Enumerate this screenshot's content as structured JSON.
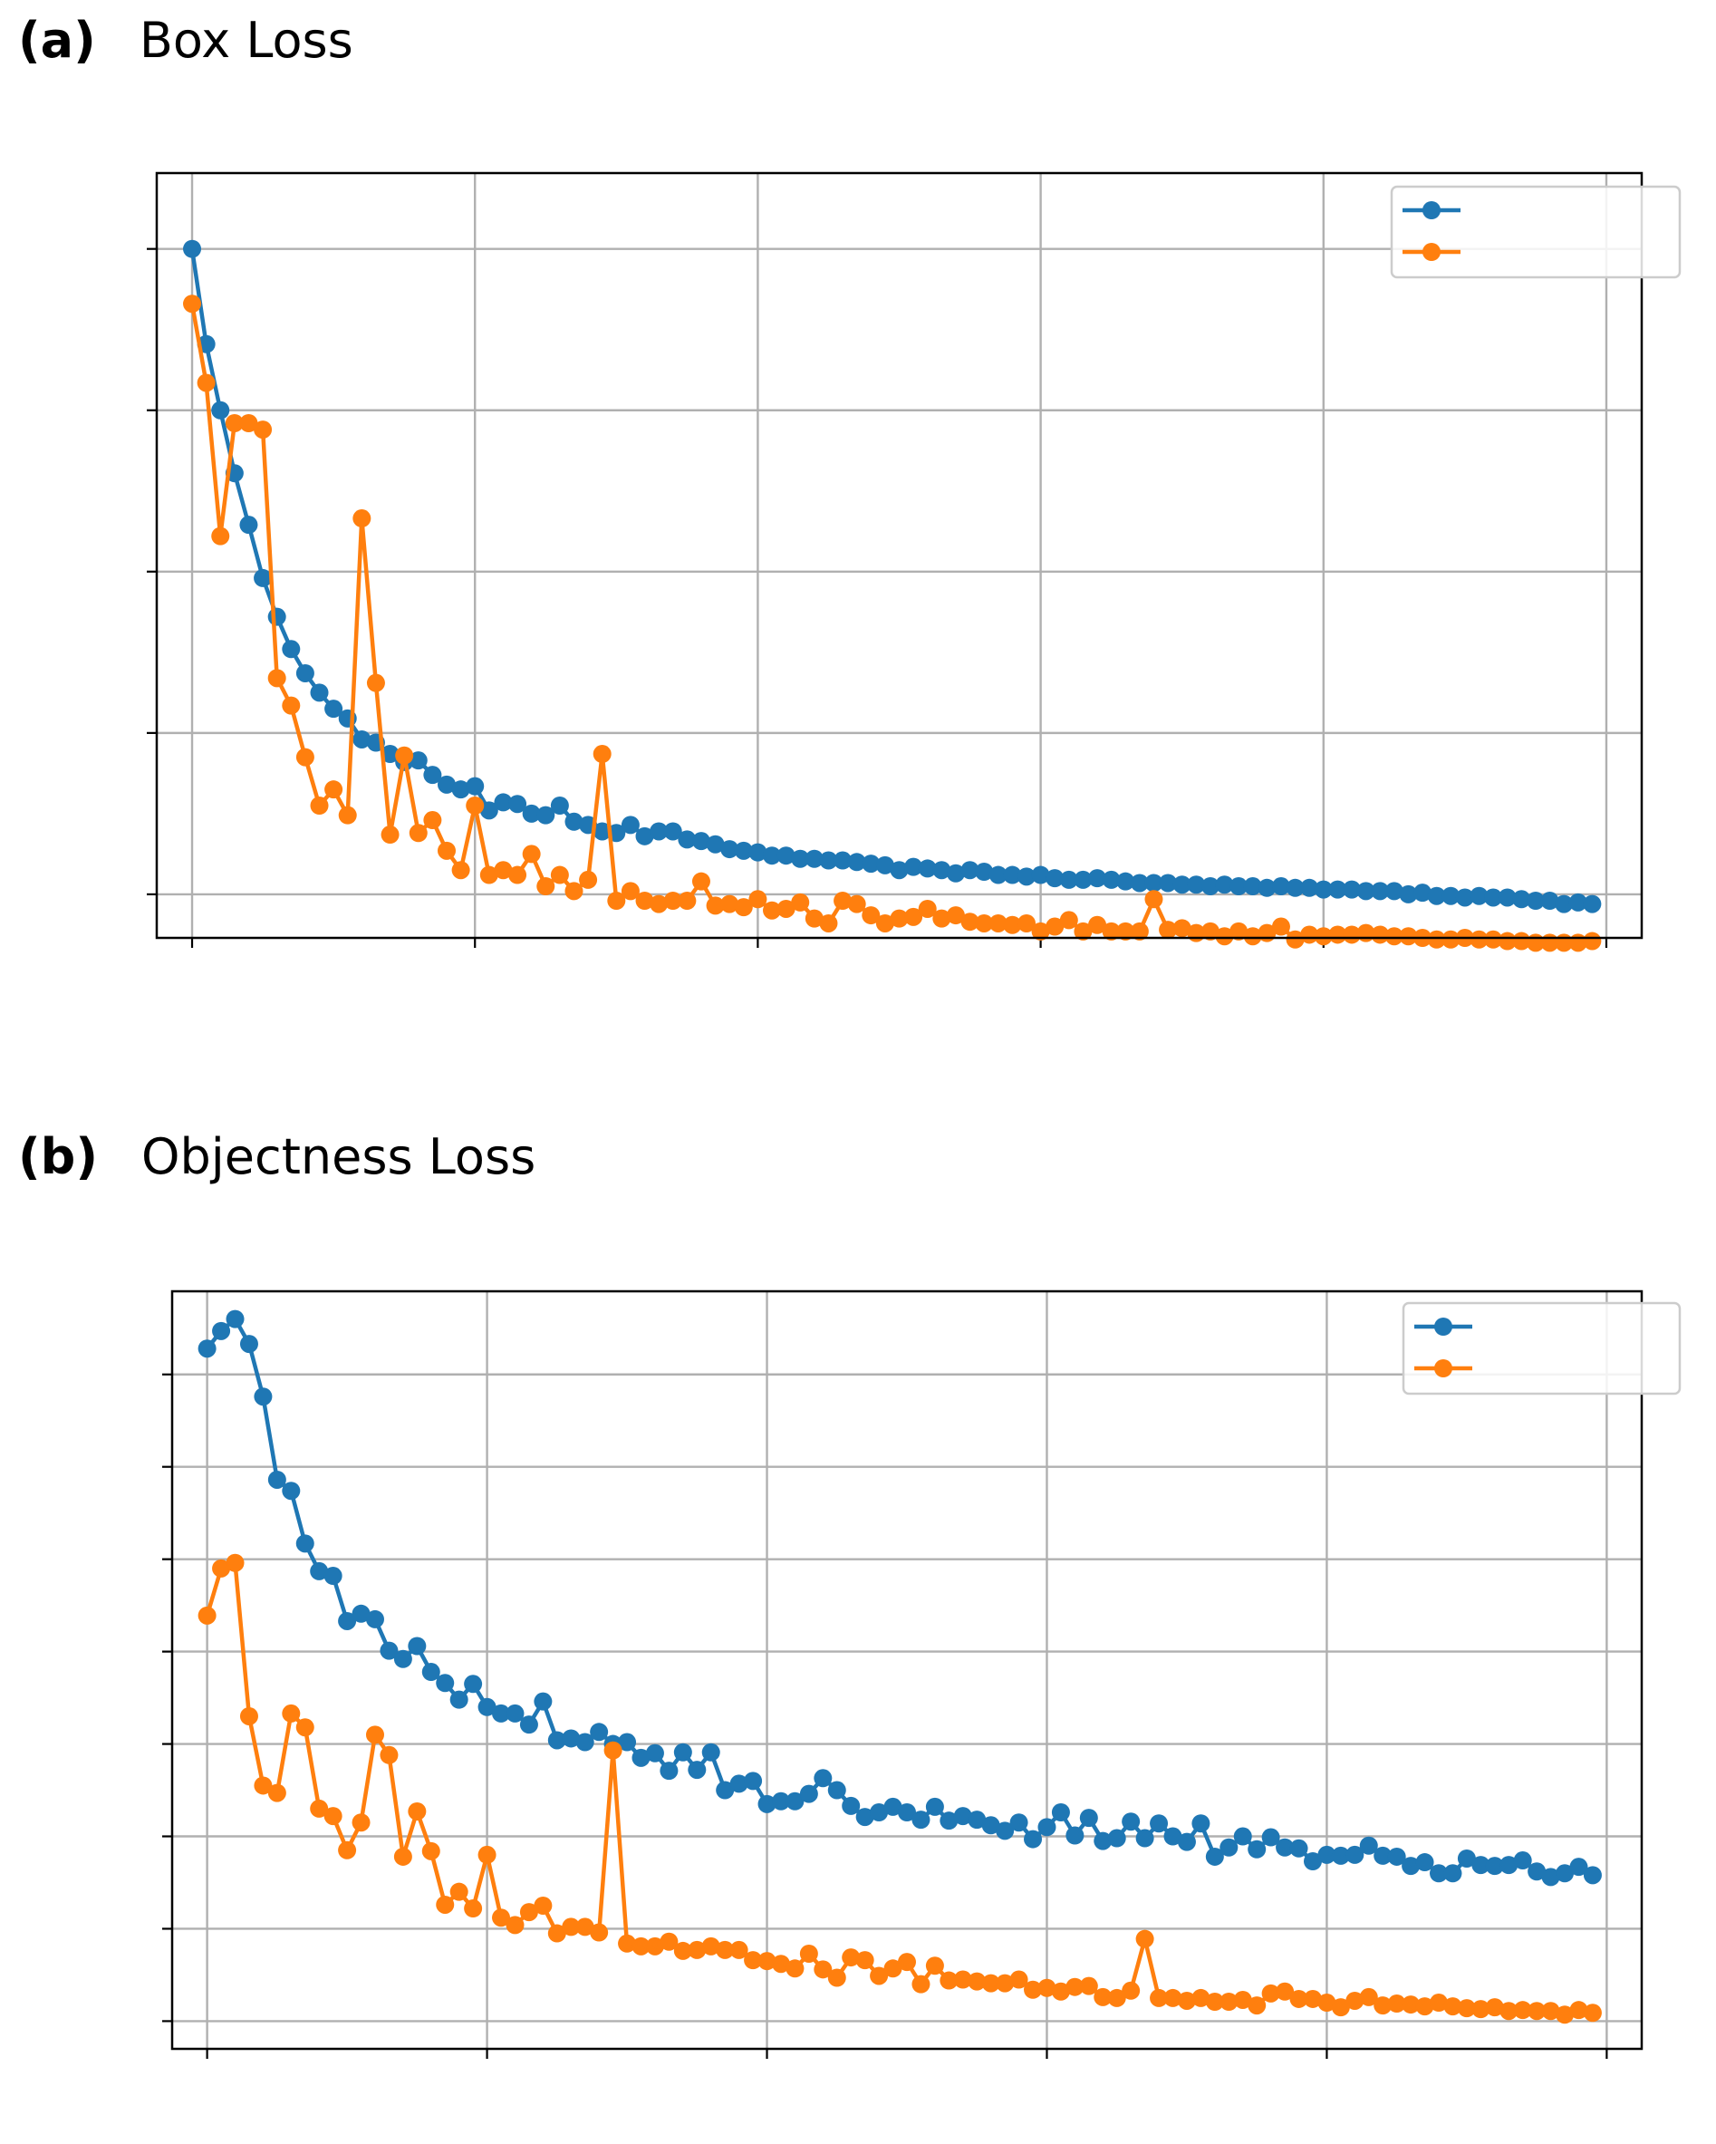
{
  "panels": [
    {
      "letter": "(a)",
      "title": "Box Loss"
    },
    {
      "letter": "(b)",
      "title": "Objectness Loss"
    }
  ],
  "chart_data": [
    {
      "type": "line",
      "title": "Box Loss",
      "xlabel": "",
      "ylabel": "",
      "xlim": [
        -2.5,
        102.5
      ],
      "ylim": [
        -0.27,
        4.47
      ],
      "xticks": [
        0,
        20,
        40,
        60,
        80,
        100
      ],
      "yticks": [
        0,
        1,
        2,
        3,
        4
      ],
      "grid": true,
      "legend_position": "top-right",
      "series": [
        {
          "color": "#1f77b4",
          "marker": "circle",
          "x": [
            0,
            1,
            2,
            3,
            4,
            5,
            6,
            7,
            8,
            9,
            10,
            11,
            12,
            13,
            14,
            15,
            16,
            17,
            18,
            19,
            20,
            21,
            22,
            23,
            24,
            25,
            26,
            27,
            28,
            29,
            30,
            31,
            32,
            33,
            34,
            35,
            36,
            37,
            38,
            39,
            40,
            41,
            42,
            43,
            44,
            45,
            46,
            47,
            48,
            49,
            50,
            51,
            52,
            53,
            54,
            55,
            56,
            57,
            58,
            59,
            60,
            61,
            62,
            63,
            64,
            65,
            66,
            67,
            68,
            69,
            70,
            71,
            72,
            73,
            74,
            75,
            76,
            77,
            78,
            79,
            80,
            81,
            82,
            83,
            84,
            85,
            86,
            87,
            88,
            89,
            90,
            91,
            92,
            93,
            94,
            95,
            96,
            97,
            98,
            99
          ],
          "y": [
            4.0,
            3.41,
            3.0,
            2.61,
            2.29,
            1.96,
            1.72,
            1.52,
            1.37,
            1.25,
            1.15,
            1.09,
            0.96,
            0.94,
            0.87,
            0.82,
            0.83,
            0.74,
            0.68,
            0.65,
            0.67,
            0.52,
            0.57,
            0.56,
            0.5,
            0.49,
            0.55,
            0.45,
            0.43,
            0.39,
            0.38,
            0.43,
            0.36,
            0.39,
            0.39,
            0.34,
            0.33,
            0.31,
            0.28,
            0.27,
            0.26,
            0.24,
            0.24,
            0.22,
            0.22,
            0.21,
            0.21,
            0.2,
            0.19,
            0.18,
            0.15,
            0.17,
            0.16,
            0.15,
            0.13,
            0.15,
            0.14,
            0.12,
            0.12,
            0.11,
            0.12,
            0.1,
            0.09,
            0.09,
            0.1,
            0.09,
            0.08,
            0.07,
            0.07,
            0.07,
            0.06,
            0.06,
            0.05,
            0.06,
            0.05,
            0.05,
            0.04,
            0.05,
            0.04,
            0.04,
            0.03,
            0.03,
            0.03,
            0.02,
            0.02,
            0.02,
            0.0,
            0.01,
            -0.01,
            -0.01,
            -0.02,
            -0.01,
            -0.02,
            -0.02,
            -0.03,
            -0.04,
            -0.04,
            -0.06,
            -0.05,
            -0.06
          ]
        },
        {
          "color": "#ff7f0e",
          "marker": "circle",
          "x": [
            0,
            1,
            2,
            3,
            4,
            5,
            6,
            7,
            8,
            9,
            10,
            11,
            12,
            13,
            14,
            15,
            16,
            17,
            18,
            19,
            20,
            21,
            22,
            23,
            24,
            25,
            26,
            27,
            28,
            29,
            30,
            31,
            32,
            33,
            34,
            35,
            36,
            37,
            38,
            39,
            40,
            41,
            42,
            43,
            44,
            45,
            46,
            47,
            48,
            49,
            50,
            51,
            52,
            53,
            54,
            55,
            56,
            57,
            58,
            59,
            60,
            61,
            62,
            63,
            64,
            65,
            66,
            67,
            68,
            69,
            70,
            71,
            72,
            73,
            74,
            75,
            76,
            77,
            78,
            79,
            80,
            81,
            82,
            83,
            84,
            85,
            86,
            87,
            88,
            89,
            90,
            91,
            92,
            93,
            94,
            95,
            96,
            97,
            98,
            99
          ],
          "y": [
            3.66,
            3.17,
            2.22,
            2.92,
            2.92,
            2.88,
            1.34,
            1.17,
            0.85,
            0.55,
            0.65,
            0.49,
            2.33,
            1.31,
            0.37,
            0.86,
            0.38,
            0.46,
            0.27,
            0.15,
            0.55,
            0.12,
            0.15,
            0.12,
            0.25,
            0.05,
            0.12,
            0.02,
            0.09,
            0.87,
            -0.04,
            0.02,
            -0.04,
            -0.06,
            -0.04,
            -0.04,
            0.08,
            -0.07,
            -0.06,
            -0.08,
            -0.03,
            -0.1,
            -0.09,
            -0.05,
            -0.15,
            -0.18,
            -0.04,
            -0.06,
            -0.13,
            -0.18,
            -0.15,
            -0.14,
            -0.09,
            -0.15,
            -0.13,
            -0.17,
            -0.18,
            -0.18,
            -0.19,
            -0.18,
            -0.23,
            -0.2,
            -0.16,
            -0.23,
            -0.19,
            -0.23,
            -0.23,
            -0.23,
            -0.03,
            -0.22,
            -0.21,
            -0.24,
            -0.23,
            -0.26,
            -0.23,
            -0.26,
            -0.24,
            -0.2,
            -0.28,
            -0.25,
            -0.26,
            -0.25,
            -0.25,
            -0.24,
            -0.25,
            -0.26,
            -0.26,
            -0.27,
            -0.28,
            -0.28,
            -0.27,
            -0.28,
            -0.28,
            -0.29,
            -0.29,
            -0.3,
            -0.3,
            -0.3,
            -0.3,
            -0.29
          ]
        }
      ]
    },
    {
      "type": "line",
      "title": "Objectness Loss",
      "xlabel": "",
      "ylabel": "",
      "xlim": [
        -2.5,
        102.5
      ],
      "ylim": [
        -0.3,
        7.9
      ],
      "xticks": [
        0,
        20,
        40,
        60,
        80,
        100
      ],
      "yticks": [
        0,
        1,
        2,
        3,
        4,
        5,
        6,
        7
      ],
      "grid": true,
      "legend_position": "top-right",
      "series": [
        {
          "color": "#1f77b4",
          "marker": "circle",
          "x": [
            0,
            1,
            2,
            3,
            4,
            5,
            6,
            7,
            8,
            9,
            10,
            11,
            12,
            13,
            14,
            15,
            16,
            17,
            18,
            19,
            20,
            21,
            22,
            23,
            24,
            25,
            26,
            27,
            28,
            29,
            30,
            31,
            32,
            33,
            34,
            35,
            36,
            37,
            38,
            39,
            40,
            41,
            42,
            43,
            44,
            45,
            46,
            47,
            48,
            49,
            50,
            51,
            52,
            53,
            54,
            55,
            56,
            57,
            58,
            59,
            60,
            61,
            62,
            63,
            64,
            65,
            66,
            67,
            68,
            69,
            70,
            71,
            72,
            73,
            74,
            75,
            76,
            77,
            78,
            79,
            80,
            81,
            82,
            83,
            84,
            85,
            86,
            87,
            88,
            89,
            90,
            91,
            92,
            93,
            94,
            95,
            96,
            97,
            98,
            99
          ],
          "y": [
            7.28,
            7.47,
            7.6,
            7.33,
            6.76,
            5.86,
            5.74,
            5.17,
            4.87,
            4.82,
            4.33,
            4.41,
            4.35,
            4.01,
            3.92,
            4.06,
            3.78,
            3.66,
            3.48,
            3.65,
            3.4,
            3.33,
            3.33,
            3.21,
            3.46,
            3.04,
            3.06,
            3.02,
            3.13,
            3.0,
            3.02,
            2.85,
            2.9,
            2.71,
            2.91,
            2.72,
            2.91,
            2.5,
            2.57,
            2.6,
            2.35,
            2.38,
            2.38,
            2.46,
            2.63,
            2.5,
            2.33,
            2.21,
            2.26,
            2.32,
            2.26,
            2.18,
            2.32,
            2.17,
            2.22,
            2.18,
            2.12,
            2.06,
            2.15,
            1.97,
            2.1,
            2.26,
            2.01,
            2.2,
            1.95,
            1.98,
            2.16,
            1.98,
            2.14,
            2.0,
            1.94,
            2.14,
            1.78,
            1.88,
            2.0,
            1.86,
            1.99,
            1.88,
            1.87,
            1.73,
            1.8,
            1.79,
            1.8,
            1.9,
            1.79,
            1.78,
            1.68,
            1.72,
            1.6,
            1.6,
            1.76,
            1.69,
            1.68,
            1.69,
            1.74,
            1.62,
            1.56,
            1.6,
            1.67,
            1.58
          ]
        },
        {
          "color": "#ff7f0e",
          "marker": "circle",
          "x": [
            0,
            1,
            2,
            3,
            4,
            5,
            6,
            7,
            8,
            9,
            10,
            11,
            12,
            13,
            14,
            15,
            16,
            17,
            18,
            19,
            20,
            21,
            22,
            23,
            24,
            25,
            26,
            27,
            28,
            29,
            30,
            31,
            32,
            33,
            34,
            35,
            36,
            37,
            38,
            39,
            40,
            41,
            42,
            43,
            44,
            45,
            46,
            47,
            48,
            49,
            50,
            51,
            52,
            53,
            54,
            55,
            56,
            57,
            58,
            59,
            60,
            61,
            62,
            63,
            64,
            65,
            66,
            67,
            68,
            69,
            70,
            71,
            72,
            73,
            74,
            75,
            76,
            77,
            78,
            79,
            80,
            81,
            82,
            83,
            84,
            85,
            86,
            87,
            88,
            89,
            90,
            91,
            92,
            93,
            94,
            95,
            96,
            97,
            98,
            99
          ],
          "y": [
            4.39,
            4.9,
            4.96,
            3.3,
            2.55,
            2.47,
            3.33,
            3.18,
            2.3,
            2.22,
            1.85,
            2.15,
            3.1,
            2.88,
            1.78,
            2.27,
            1.84,
            1.26,
            1.4,
            1.22,
            1.8,
            1.12,
            1.04,
            1.18,
            1.25,
            0.95,
            1.02,
            1.02,
            0.96,
            2.93,
            0.84,
            0.81,
            0.81,
            0.86,
            0.76,
            0.77,
            0.81,
            0.77,
            0.77,
            0.66,
            0.65,
            0.62,
            0.57,
            0.73,
            0.56,
            0.47,
            0.69,
            0.66,
            0.49,
            0.57,
            0.64,
            0.4,
            0.6,
            0.44,
            0.45,
            0.43,
            0.41,
            0.41,
            0.45,
            0.34,
            0.36,
            0.32,
            0.37,
            0.38,
            0.26,
            0.25,
            0.33,
            0.89,
            0.25,
            0.25,
            0.22,
            0.25,
            0.21,
            0.21,
            0.23,
            0.17,
            0.3,
            0.32,
            0.24,
            0.24,
            0.2,
            0.15,
            0.22,
            0.26,
            0.17,
            0.19,
            0.18,
            0.16,
            0.2,
            0.16,
            0.14,
            0.13,
            0.15,
            0.11,
            0.12,
            0.11,
            0.11,
            0.07,
            0.12,
            0.09
          ]
        }
      ]
    }
  ]
}
